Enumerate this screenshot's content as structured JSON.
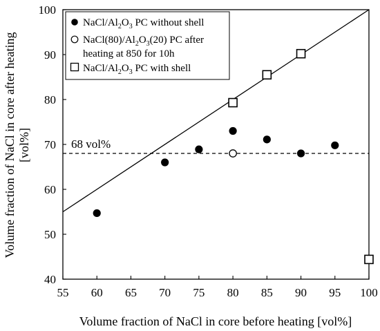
{
  "chart_data": {
    "type": "scatter",
    "xlabel": "Volume fraction of NaCl in core before heating [vol%]",
    "ylabel_line1": "Volume fraction of NaCl in core after heating",
    "ylabel_line2": "[vol%]",
    "xlim": [
      55,
      100
    ],
    "ylim": [
      40,
      100
    ],
    "xticks": [
      55,
      60,
      65,
      70,
      75,
      80,
      85,
      90,
      95,
      100
    ],
    "yticks": [
      40,
      50,
      60,
      70,
      80,
      90,
      100
    ],
    "grid": false,
    "legend_position": "top-left",
    "series": [
      {
        "name_parts": [
          "NaCl/Al",
          "2",
          "O",
          "3",
          " PC without shell"
        ],
        "marker": "filled-circle",
        "points": [
          [
            60,
            54.7
          ],
          [
            70,
            66
          ],
          [
            75,
            68.9
          ],
          [
            80,
            73
          ],
          [
            85,
            71.1
          ],
          [
            90,
            68
          ],
          [
            95,
            69.8
          ]
        ]
      },
      {
        "name_parts": [
          "NaCl(80)/Al",
          "2",
          "O",
          "3",
          "(20) PC after"
        ],
        "name_line2": "heating at 850 for 10h",
        "marker": "open-circle",
        "points": [
          [
            80,
            68
          ]
        ]
      },
      {
        "name_parts": [
          "NaCl/Al",
          "2",
          "O",
          "3",
          " PC with shell"
        ],
        "marker": "open-square",
        "points": [
          [
            80,
            79.3
          ],
          [
            85,
            85.5
          ],
          [
            90,
            90.2
          ],
          [
            100,
            44.4
          ]
        ]
      }
    ],
    "reference_lines": [
      {
        "kind": "identity",
        "from": [
          55,
          55
        ],
        "to": [
          100,
          100
        ],
        "style": "solid"
      },
      {
        "kind": "horizontal",
        "y": 68,
        "style": "dashed",
        "label": "68 vol%"
      }
    ]
  }
}
